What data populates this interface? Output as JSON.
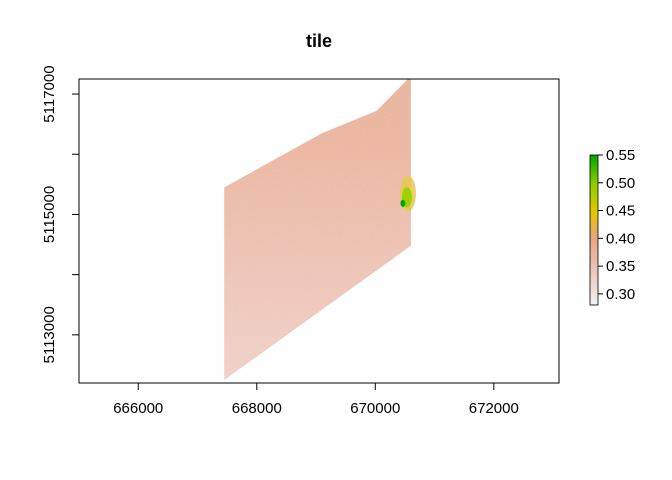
{
  "chart_data": {
    "type": "heatmap",
    "title": "tile",
    "xlabel": "",
    "ylabel": "",
    "xlim": [
      665000,
      673100
    ],
    "ylim": [
      5112200,
      5117250
    ],
    "x_ticks": [
      666000,
      668000,
      670000,
      672000
    ],
    "x_tick_labels": [
      "666000",
      "668000",
      "670000",
      "672000"
    ],
    "y_ticks": [
      5113000,
      5115000,
      5117000
    ],
    "y_tick_labels": [
      "5113000",
      "5115000",
      "5117000"
    ],
    "extent_polygon": [
      [
        667450,
        5115450
      ],
      [
        669100,
        5116350
      ],
      [
        670020,
        5116720
      ],
      [
        670600,
        5117300
      ],
      [
        670600,
        5114480
      ],
      [
        667450,
        5112250
      ]
    ],
    "hotspot": {
      "x": 670500,
      "y": 5115250,
      "max_value": 0.55
    },
    "legend": {
      "position": "right",
      "min": 0.28,
      "max": 0.55,
      "ticks": [
        0.3,
        0.35,
        0.4,
        0.45,
        0.5,
        0.55
      ],
      "tick_labels": [
        "0.30",
        "0.35",
        "0.40",
        "0.45",
        "0.50",
        "0.55"
      ],
      "colors": [
        "#f2f2f2",
        "#eec2b5",
        "#e8a47d",
        "#e2c800",
        "#8ed000",
        "#00a600"
      ]
    }
  }
}
